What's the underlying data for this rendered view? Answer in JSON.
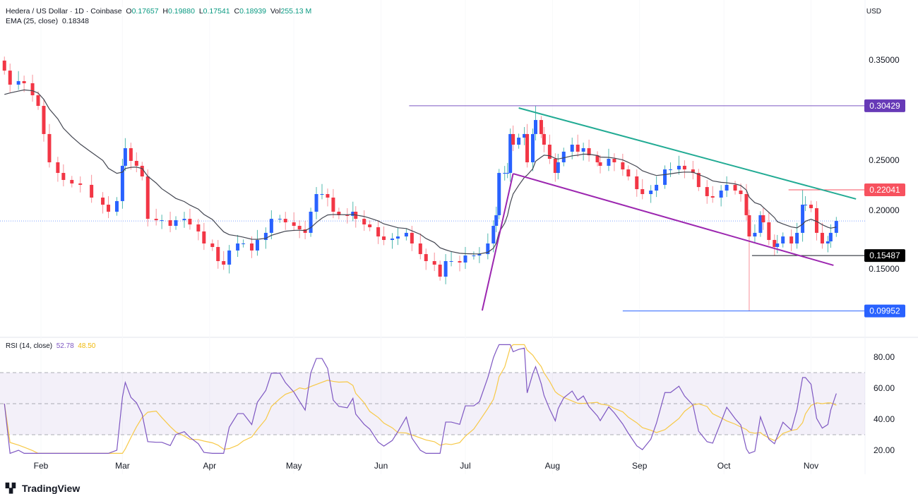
{
  "header": {
    "symbol": "Hedera / US Dollar · 1D · Coinbase",
    "o_label": "O",
    "o": "0.17657",
    "h_label": "H",
    "h": "0.19880",
    "l_label": "L",
    "l": "0.17541",
    "c_label": "C",
    "c": "0.18939",
    "vol_label": "Vol",
    "vol": "255.13 M",
    "ema_label": "EMA (25, close)",
    "ema_value": "0.18348",
    "currency": "USD"
  },
  "rsi_header": {
    "label": "RSI (14, close)",
    "value": "52.78",
    "ma_value": "48.50"
  },
  "footer": {
    "brand": "TradingView"
  },
  "colors": {
    "up_body": "#2962ff",
    "up_wick": "#26a69a",
    "down": "#f23645",
    "ema": "#434651",
    "rsi": "#7e57c2",
    "rsi_ma": "#f7c948",
    "green_line": "#22ab94",
    "purple_line": "#9c27b0"
  },
  "chart_data": [
    {
      "type": "candlestick",
      "year": 2024,
      "ylim": [
        0.08,
        0.38
      ],
      "y_ticks": [
        "0.35000",
        "0.25000",
        "0.20000",
        "0.15000"
      ],
      "y_tick_values": [
        0.35,
        0.25,
        0.2,
        0.15
      ],
      "x_ticks": [
        "Feb",
        "Mar",
        "Apr",
        "May",
        "Jun",
        "Jul",
        "Aug",
        "Sep",
        "Oct",
        "Nov"
      ],
      "x_tick_dates": [
        "02-01",
        "03-01",
        "04-01",
        "05-01",
        "06-01",
        "07-01",
        "08-01",
        "09-01",
        "10-01",
        "11-01"
      ],
      "last_price": 0.18939,
      "closes": [
        [
          "01-19",
          0.3394
        ],
        [
          "01-21",
          0.3254
        ],
        [
          "01-24",
          0.3289
        ],
        [
          "01-26",
          0.3268
        ],
        [
          "01-29",
          0.3148
        ],
        [
          "01-31",
          0.3042
        ],
        [
          "02-02",
          0.2761
        ],
        [
          "02-04",
          0.2479
        ],
        [
          "02-07",
          0.2373
        ],
        [
          "02-09",
          0.2303
        ],
        [
          "02-12",
          0.2268
        ],
        [
          "02-15",
          0.2254
        ],
        [
          "02-19",
          0.2127
        ],
        [
          "02-23",
          0.2056
        ],
        [
          "02-25",
          0.1986
        ],
        [
          "02-28",
          0.2092
        ],
        [
          "03-01",
          0.2444
        ],
        [
          "03-02",
          0.262
        ],
        [
          "03-04",
          0.2493
        ],
        [
          "03-06",
          0.2444
        ],
        [
          "03-08",
          0.2338
        ],
        [
          "03-10",
          0.1915
        ],
        [
          "03-13",
          0.1901
        ],
        [
          "03-15",
          0.1901
        ],
        [
          "03-18",
          0.1845
        ],
        [
          "03-20",
          0.1901
        ],
        [
          "03-23",
          0.1915
        ],
        [
          "03-25",
          0.1859
        ],
        [
          "03-28",
          0.1789
        ],
        [
          "03-30",
          0.1669
        ],
        [
          "04-02",
          0.1634
        ],
        [
          "04-04",
          0.1493
        ],
        [
          "04-06",
          0.1458
        ],
        [
          "04-08",
          0.1599
        ],
        [
          "04-11",
          0.1669
        ],
        [
          "04-13",
          0.1669
        ],
        [
          "04-16",
          0.1599
        ],
        [
          "04-18",
          0.1704
        ],
        [
          "04-21",
          0.1775
        ],
        [
          "04-23",
          0.1915
        ],
        [
          "04-26",
          0.1915
        ],
        [
          "04-28",
          0.188
        ],
        [
          "05-01",
          0.1845
        ],
        [
          "05-03",
          0.181
        ],
        [
          "05-05",
          0.1775
        ],
        [
          "05-07",
          0.1986
        ],
        [
          "05-09",
          0.2162
        ],
        [
          "05-11",
          0.2162
        ],
        [
          "05-13",
          0.2127
        ],
        [
          "05-15",
          0.1986
        ],
        [
          "05-17",
          0.1951
        ],
        [
          "05-20",
          0.1944
        ],
        [
          "05-22",
          0.1986
        ],
        [
          "05-23",
          0.1915
        ],
        [
          "05-26",
          0.1859
        ],
        [
          "05-28",
          0.1831
        ],
        [
          "05-31",
          0.1739
        ],
        [
          "06-02",
          0.1704
        ],
        [
          "06-05",
          0.1718
        ],
        [
          "06-07",
          0.1739
        ],
        [
          "06-10",
          0.1775
        ],
        [
          "06-12",
          0.1669
        ],
        [
          "06-15",
          0.1563
        ],
        [
          "06-17",
          0.1493
        ],
        [
          "06-20",
          0.1458
        ],
        [
          "06-22",
          0.1338
        ],
        [
          "06-24",
          0.1493
        ],
        [
          "06-26",
          0.1493
        ],
        [
          "06-29",
          0.1479
        ],
        [
          "07-01",
          0.1549
        ],
        [
          "07-04",
          0.1549
        ],
        [
          "07-06",
          0.1563
        ],
        [
          "07-09",
          0.1669
        ],
        [
          "07-11",
          0.1845
        ],
        [
          "07-12",
          0.1951
        ],
        [
          "07-13",
          0.2373
        ],
        [
          "07-15",
          0.2373
        ],
        [
          "07-16",
          0.2373
        ],
        [
          "07-17",
          0.2761
        ],
        [
          "07-18",
          0.2655
        ],
        [
          "07-20",
          0.2725
        ],
        [
          "07-22",
          0.2761
        ],
        [
          "07-23",
          0.2479
        ],
        [
          "07-25",
          0.2761
        ],
        [
          "07-26",
          0.2901
        ],
        [
          "07-28",
          0.2761
        ],
        [
          "07-29",
          0.2655
        ],
        [
          "07-31",
          0.2514
        ],
        [
          "08-02",
          0.2373
        ],
        [
          "08-03",
          0.2479
        ],
        [
          "08-05",
          0.2585
        ],
        [
          "08-08",
          0.2655
        ],
        [
          "08-10",
          0.2585
        ],
        [
          "08-12",
          0.262
        ],
        [
          "08-14",
          0.2549
        ],
        [
          "08-17",
          0.2479
        ],
        [
          "08-18",
          0.2444
        ],
        [
          "08-21",
          0.2514
        ],
        [
          "08-23",
          0.2479
        ],
        [
          "08-26",
          0.2408
        ],
        [
          "08-28",
          0.2338
        ],
        [
          "08-31",
          0.2211
        ],
        [
          "09-02",
          0.2162
        ],
        [
          "09-05",
          0.2197
        ],
        [
          "09-07",
          0.2254
        ],
        [
          "09-10",
          0.2408
        ],
        [
          "09-12",
          0.2408
        ],
        [
          "09-15",
          0.2444
        ],
        [
          "09-17",
          0.2408
        ],
        [
          "09-20",
          0.2373
        ],
        [
          "09-22",
          0.2232
        ],
        [
          "09-25",
          0.2141
        ],
        [
          "09-27",
          0.2127
        ],
        [
          "09-30",
          0.2197
        ],
        [
          "10-02",
          0.2254
        ],
        [
          "10-05",
          0.2197
        ],
        [
          "10-07",
          0.2162
        ],
        [
          "10-09",
          0.1951
        ],
        [
          "10-10",
          0.1739
        ],
        [
          "10-12",
          0.1775
        ],
        [
          "10-14",
          0.1951
        ],
        [
          "10-15",
          0.188
        ],
        [
          "10-17",
          0.1704
        ],
        [
          "10-19",
          0.1634
        ],
        [
          "10-20",
          0.1669
        ],
        [
          "10-22",
          0.1739
        ],
        [
          "10-25",
          0.1669
        ],
        [
          "10-27",
          0.1775
        ],
        [
          "10-29",
          0.2056
        ],
        [
          "10-30",
          0.2056
        ],
        [
          "11-01",
          0.2021
        ],
        [
          "11-03",
          0.1775
        ],
        [
          "11-05",
          0.1669
        ],
        [
          "11-07",
          0.169
        ],
        [
          "11-08",
          0.1775
        ],
        [
          "11-10",
          0.18939
        ]
      ],
      "wick_extremes": [
        {
          "date": "07-26",
          "high": 0.30429
        },
        {
          "date": "10-10",
          "low": 0.09952
        },
        {
          "date": "10-19",
          "low": 0.15487
        },
        {
          "date": "10-29",
          "high": 0.22041
        }
      ],
      "ema_period": 25,
      "price_levels": [
        {
          "label": "0.30429",
          "value": 0.30429,
          "from": "06-11",
          "color": "#7e57c2",
          "tag_bg": "#673ab7"
        },
        {
          "label": "0.22041",
          "value": 0.22041,
          "from": "10-24",
          "color": "#f7525f",
          "tag_bg": "#f7525f"
        },
        {
          "label": "0.15487",
          "value": 0.15487,
          "from": "10-11",
          "color": "#131722",
          "tag_bg": "#000000"
        },
        {
          "label": "0.09952",
          "value": 0.09952,
          "from": "08-26",
          "color": "#2962ff",
          "tag_bg": "#2962ff"
        }
      ],
      "trendlines": [
        {
          "name": "upper-channel",
          "color": "#22ab94",
          "from": [
            "07-20",
            0.3021
          ],
          "to": [
            "11-17",
            0.2113
          ]
        },
        {
          "name": "rally-leg",
          "color": "#9c27b0",
          "from": [
            "07-07",
            0.1
          ],
          "to": [
            "07-18",
            0.2366
          ]
        },
        {
          "name": "lower-channel",
          "color": "#9c27b0",
          "from": [
            "07-18",
            0.2366
          ],
          "to": [
            "11-09",
            0.1451
          ]
        }
      ]
    },
    {
      "type": "line",
      "ylim": [
        15,
        90
      ],
      "y_ticks": [
        "80.00",
        "60.00",
        "40.00",
        "20.00"
      ],
      "y_tick_values": [
        80,
        60,
        40,
        20
      ],
      "bands": [
        30,
        50,
        70
      ]
    }
  ]
}
